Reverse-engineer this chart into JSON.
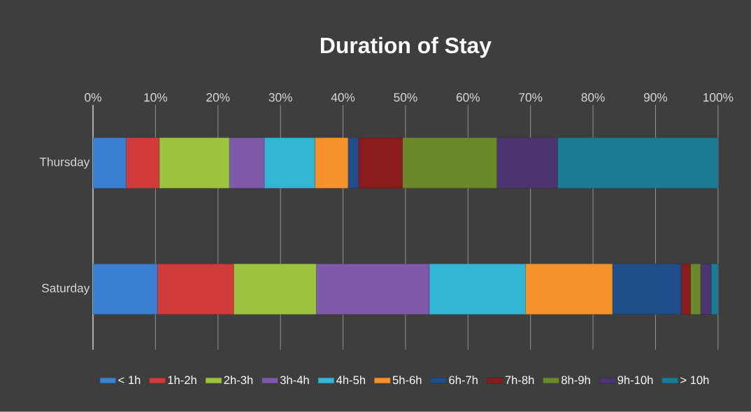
{
  "chart_data": {
    "type": "bar",
    "title": "Duration of Stay",
    "orientation": "horizontal",
    "stacked": true,
    "categories": [
      "Thursday",
      "Saturday"
    ],
    "series": [
      {
        "name": "< 1h",
        "color": "#3a7fd0",
        "values": [
          5.3,
          10.3
        ]
      },
      {
        "name": "1h-2h",
        "color": "#d13b3b",
        "values": [
          5.3,
          12.2
        ]
      },
      {
        "name": "2h-3h",
        "color": "#9dc43f",
        "values": [
          11.2,
          13.2
        ]
      },
      {
        "name": "3h-4h",
        "color": "#7f5aab",
        "values": [
          5.6,
          18.1
        ]
      },
      {
        "name": "4h-5h",
        "color": "#33b5d5",
        "values": [
          8.1,
          15.4
        ]
      },
      {
        "name": "5h-6h",
        "color": "#f6922a",
        "values": [
          5.3,
          13.9
        ]
      },
      {
        "name": "6h-7h",
        "color": "#1f4e8a",
        "values": [
          1.7,
          11.0
        ]
      },
      {
        "name": "7h-8h",
        "color": "#8b1c1c",
        "values": [
          7.0,
          1.5
        ]
      },
      {
        "name": "8h-9h",
        "color": "#6a8a2a",
        "values": [
          15.1,
          1.6
        ]
      },
      {
        "name": "9h-10h",
        "color": "#4d3572",
        "values": [
          9.7,
          1.7
        ]
      },
      {
        "name": "> 10h",
        "color": "#1a7d95",
        "values": [
          25.7,
          1.1
        ]
      }
    ],
    "xlim": [
      0,
      100
    ],
    "xticks": [
      {
        "value": 0,
        "label": "0%"
      },
      {
        "value": 10,
        "label": "10%"
      },
      {
        "value": 20,
        "label": "20%"
      },
      {
        "value": 30,
        "label": "30%"
      },
      {
        "value": 40,
        "label": "40%"
      },
      {
        "value": 50,
        "label": "50%"
      },
      {
        "value": 60,
        "label": "60%"
      },
      {
        "value": 70,
        "label": "70%"
      },
      {
        "value": 80,
        "label": "80%"
      },
      {
        "value": 90,
        "label": "90%"
      },
      {
        "value": 100,
        "label": "100%"
      }
    ],
    "grid": "x",
    "legend": "bottom"
  }
}
